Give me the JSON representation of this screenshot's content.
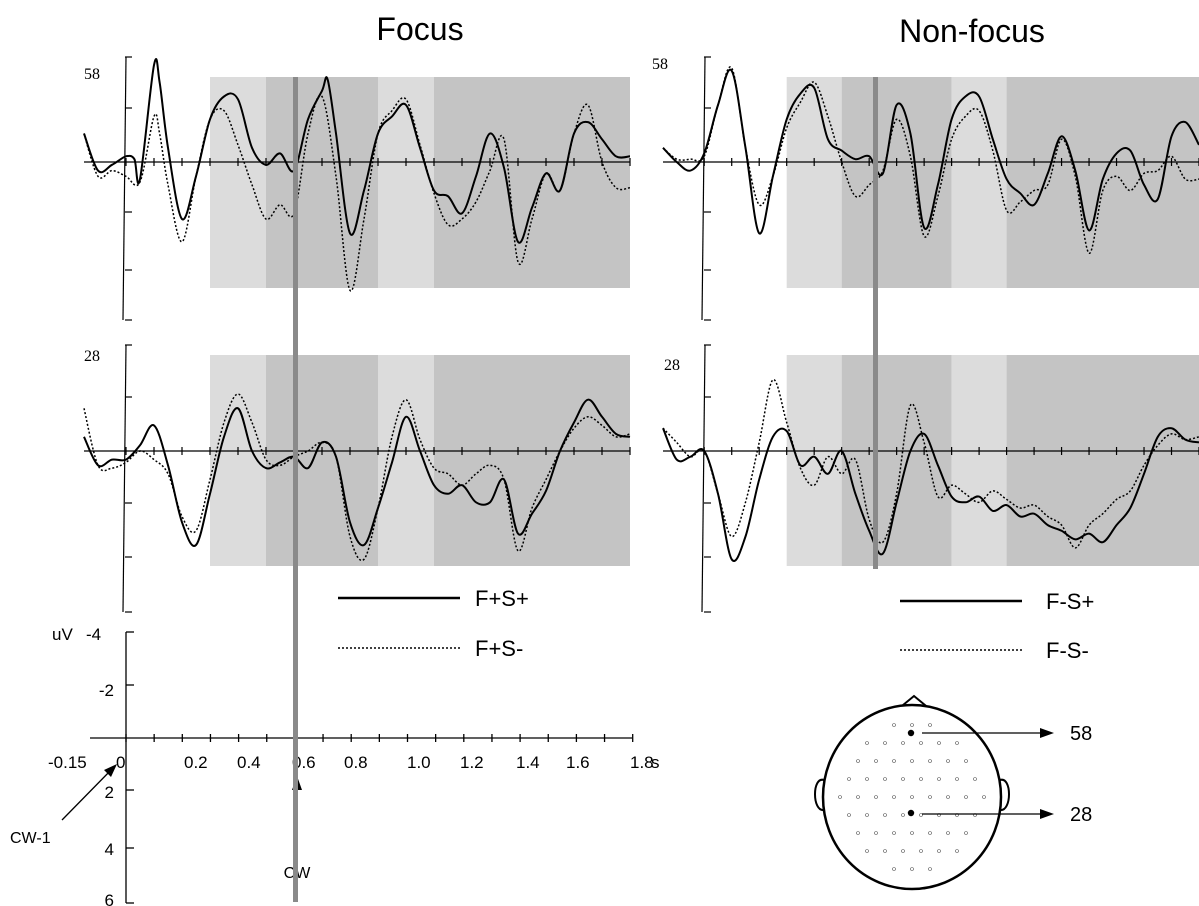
{
  "chart_data": [
    {
      "type": "line",
      "panel": "Focus - electrode 58",
      "title": "Focus",
      "scale_label": "58",
      "x_unit": "s",
      "y_unit": "uV",
      "negative_up": true,
      "xlim": [
        -0.15,
        1.8
      ],
      "ylim": [
        -4,
        6
      ],
      "shaded_windows": [
        [
          0.3,
          0.5,
          "light"
        ],
        [
          0.5,
          0.9,
          "dark"
        ],
        [
          0.9,
          1.1,
          "light"
        ],
        [
          1.1,
          1.8,
          "dark"
        ]
      ],
      "marker_x": 0.6,
      "series": [
        {
          "name": "F+S+",
          "style": "solid",
          "x": [
            -0.15,
            -0.1,
            -0.05,
            0,
            0.03,
            0.05,
            0.1,
            0.12,
            0.15,
            0.2,
            0.25,
            0.3,
            0.35,
            0.4,
            0.45,
            0.5,
            0.55,
            0.6,
            0.65,
            0.7,
            0.72,
            0.75,
            0.8,
            0.85,
            0.9,
            0.95,
            1.0,
            1.05,
            1.1,
            1.15,
            1.2,
            1.25,
            1.3,
            1.35,
            1.4,
            1.45,
            1.5,
            1.55,
            1.6,
            1.65,
            1.7,
            1.75,
            1.8
          ],
          "y": [
            -1.0,
            0.3,
            0.1,
            -0.2,
            -0.1,
            0.6,
            -3.4,
            -2.8,
            -0.5,
            2.0,
            0.5,
            -1.5,
            -2.3,
            -2.2,
            -0.5,
            0.1,
            -0.3,
            0.3,
            -1.5,
            -2.5,
            -2.9,
            -1.0,
            2.5,
            1.0,
            -1.0,
            -1.6,
            -2.0,
            -0.5,
            1.0,
            1.2,
            1.8,
            0.5,
            -1.0,
            0.2,
            2.8,
            1.6,
            0.4,
            1.0,
            -1.0,
            -1.4,
            -0.8,
            -0.2,
            -0.2
          ]
        },
        {
          "name": "F+S-",
          "style": "dotted",
          "x": [
            -0.15,
            -0.1,
            -0.05,
            0,
            0.05,
            0.1,
            0.12,
            0.15,
            0.2,
            0.25,
            0.3,
            0.35,
            0.4,
            0.45,
            0.5,
            0.55,
            0.6,
            0.65,
            0.7,
            0.75,
            0.8,
            0.85,
            0.9,
            0.95,
            1.0,
            1.05,
            1.1,
            1.15,
            1.2,
            1.25,
            1.3,
            1.35,
            1.4,
            1.45,
            1.5,
            1.55,
            1.6,
            1.65,
            1.7,
            1.75,
            1.8
          ],
          "y": [
            -1.0,
            0.5,
            0.3,
            0.5,
            0.7,
            -1.6,
            -1.0,
            0.8,
            2.8,
            0.5,
            -1.5,
            -1.8,
            -0.6,
            0.8,
            2.0,
            1.5,
            1.8,
            -1.0,
            -2.3,
            0.5,
            4.5,
            2.0,
            -1.0,
            -1.8,
            -2.2,
            -0.6,
            1.1,
            2.2,
            2.0,
            1.4,
            0.3,
            -0.8,
            3.5,
            2.0,
            0.4,
            1.0,
            -1.0,
            -2.0,
            0.0,
            0.9,
            0.9
          ]
        }
      ]
    },
    {
      "type": "line",
      "panel": "Non-focus - electrode 58",
      "title": "Non-focus",
      "scale_label": "58",
      "x_unit": "s",
      "negative_up": true,
      "xlim": [
        -0.15,
        1.8
      ],
      "ylim": [
        -4,
        6
      ],
      "shaded_windows": [
        [
          0.3,
          0.5,
          "light"
        ],
        [
          0.5,
          0.9,
          "dark"
        ],
        [
          0.9,
          1.1,
          "light"
        ],
        [
          1.1,
          1.8,
          "dark"
        ]
      ],
      "marker_x": 0.6,
      "series": [
        {
          "name": "F-S+",
          "style": "solid",
          "x": [
            -0.15,
            -0.1,
            -0.05,
            0,
            0.05,
            0.1,
            0.15,
            0.2,
            0.25,
            0.3,
            0.35,
            0.4,
            0.45,
            0.5,
            0.55,
            0.6,
            0.65,
            0.7,
            0.75,
            0.8,
            0.85,
            0.9,
            0.95,
            1.0,
            1.05,
            1.1,
            1.15,
            1.2,
            1.25,
            1.3,
            1.35,
            1.4,
            1.45,
            1.5,
            1.55,
            1.6,
            1.65,
            1.7,
            1.75,
            1.8
          ],
          "y": [
            -0.5,
            0.0,
            0.3,
            -0.3,
            -2.0,
            -3.2,
            -0.5,
            2.5,
            0.5,
            -1.5,
            -2.4,
            -2.6,
            -0.8,
            -0.4,
            -0.1,
            -0.2,
            0.4,
            -2.0,
            -1.0,
            2.3,
            0.8,
            -1.5,
            -2.3,
            -2.3,
            -0.8,
            0.6,
            1.1,
            1.5,
            0.4,
            -0.9,
            0.3,
            2.4,
            0.6,
            -0.3,
            -0.4,
            0.8,
            1.3,
            -0.9,
            -1.4,
            -0.6
          ]
        },
        {
          "name": "F-S-",
          "style": "dotted",
          "x": [
            -0.15,
            -0.1,
            -0.05,
            0,
            0.05,
            0.1,
            0.15,
            0.2,
            0.25,
            0.3,
            0.35,
            0.4,
            0.45,
            0.5,
            0.55,
            0.6,
            0.65,
            0.7,
            0.75,
            0.8,
            0.85,
            0.9,
            0.95,
            1.0,
            1.05,
            1.1,
            1.15,
            1.2,
            1.25,
            1.3,
            1.35,
            1.4,
            1.45,
            1.5,
            1.55,
            1.6,
            1.65,
            1.7,
            1.75,
            1.8
          ],
          "y": [
            -0.5,
            -0.1,
            -0.1,
            -0.2,
            -2.0,
            -3.3,
            -0.5,
            1.5,
            0.5,
            -1.2,
            -2.1,
            -2.8,
            -1.6,
            0.0,
            1.2,
            0.8,
            0.3,
            -1.5,
            -0.2,
            2.6,
            1.2,
            -0.8,
            -1.6,
            -1.8,
            -0.4,
            1.7,
            1.4,
            1.0,
            0.8,
            -0.8,
            0.5,
            3.2,
            1.0,
            0.5,
            1.0,
            0.4,
            0.3,
            -0.2,
            0.6,
            0.6
          ]
        }
      ]
    },
    {
      "type": "line",
      "panel": "Focus - electrode 28",
      "scale_label": "28",
      "x_unit": "s",
      "negative_up": true,
      "xlim": [
        -0.15,
        1.8
      ],
      "ylim": [
        -4,
        6
      ],
      "shaded_windows": [
        [
          0.3,
          0.5,
          "light"
        ],
        [
          0.5,
          0.9,
          "dark"
        ],
        [
          0.9,
          1.1,
          "light"
        ],
        [
          1.1,
          1.8,
          "dark"
        ]
      ],
      "marker_x": 0.6,
      "series": [
        {
          "name": "F+S+",
          "style": "solid",
          "x": [
            -0.15,
            -0.1,
            -0.05,
            0,
            0.05,
            0.1,
            0.15,
            0.2,
            0.25,
            0.3,
            0.35,
            0.4,
            0.45,
            0.5,
            0.55,
            0.6,
            0.65,
            0.7,
            0.75,
            0.8,
            0.85,
            0.9,
            0.95,
            1.0,
            1.05,
            1.1,
            1.15,
            1.2,
            1.25,
            1.3,
            1.35,
            1.4,
            1.45,
            1.5,
            1.55,
            1.6,
            1.65,
            1.7,
            1.75,
            1.8
          ],
          "y": [
            -0.5,
            0.5,
            0.3,
            0.3,
            -0.2,
            -0.9,
            0.5,
            2.5,
            3.3,
            1.5,
            -0.5,
            -1.5,
            0.0,
            0.6,
            0.4,
            0.2,
            0.6,
            -0.3,
            0.2,
            2.5,
            3.3,
            2.0,
            0.4,
            -1.2,
            0.0,
            1.2,
            1.5,
            1.2,
            1.8,
            1.8,
            1.0,
            2.9,
            2.2,
            1.4,
            0.0,
            -1.0,
            -1.8,
            -1.2,
            -0.6,
            -0.5
          ]
        },
        {
          "name": "F+S-",
          "style": "dotted",
          "x": [
            -0.15,
            -0.1,
            -0.05,
            0,
            0.05,
            0.1,
            0.15,
            0.2,
            0.25,
            0.3,
            0.35,
            0.4,
            0.45,
            0.5,
            0.55,
            0.6,
            0.65,
            0.7,
            0.75,
            0.8,
            0.85,
            0.9,
            0.95,
            1.0,
            1.05,
            1.1,
            1.15,
            1.2,
            1.25,
            1.3,
            1.35,
            1.4,
            1.45,
            1.5,
            1.55,
            1.6,
            1.65,
            1.7,
            1.75,
            1.8
          ],
          "y": [
            -1.5,
            0.5,
            0.6,
            0.4,
            0.0,
            0.3,
            0.8,
            2.3,
            2.8,
            1.0,
            -1.0,
            -2.0,
            -1.0,
            0.3,
            0.5,
            0.2,
            0.0,
            -0.3,
            0.2,
            3.0,
            3.8,
            2.0,
            -0.5,
            -1.8,
            -0.4,
            0.6,
            0.8,
            1.2,
            0.8,
            0.5,
            1.0,
            3.5,
            2.0,
            1.0,
            0.0,
            -0.8,
            -1.2,
            -0.9,
            -0.5,
            -0.6
          ]
        }
      ]
    },
    {
      "type": "line",
      "panel": "Non-focus - electrode 28",
      "scale_label": "28",
      "x_unit": "s",
      "negative_up": true,
      "xlim": [
        -0.15,
        1.8
      ],
      "ylim": [
        -4,
        6
      ],
      "shaded_windows": [
        [
          0.3,
          0.5,
          "light"
        ],
        [
          0.5,
          0.9,
          "dark"
        ],
        [
          0.9,
          1.1,
          "light"
        ],
        [
          1.1,
          1.8,
          "dark"
        ]
      ],
      "marker_x": 0.6,
      "series": [
        {
          "name": "F-S+",
          "style": "solid",
          "x": [
            -0.15,
            -0.1,
            -0.05,
            0,
            0.05,
            0.1,
            0.15,
            0.2,
            0.25,
            0.3,
            0.35,
            0.4,
            0.45,
            0.5,
            0.55,
            0.6,
            0.65,
            0.7,
            0.75,
            0.8,
            0.85,
            0.9,
            0.95,
            1.0,
            1.05,
            1.1,
            1.15,
            1.2,
            1.25,
            1.3,
            1.35,
            1.4,
            1.45,
            1.5,
            1.55,
            1.6,
            1.65,
            1.7,
            1.75,
            1.8
          ],
          "y": [
            -0.8,
            0.3,
            0.2,
            0.0,
            1.5,
            3.8,
            3.0,
            1.0,
            -0.5,
            -0.7,
            0.5,
            0.2,
            0.8,
            0.0,
            1.5,
            2.8,
            3.6,
            1.8,
            0.0,
            -0.6,
            0.5,
            1.6,
            1.8,
            1.6,
            2.1,
            1.9,
            2.3,
            2.2,
            2.6,
            2.8,
            3.1,
            2.9,
            3.2,
            2.6,
            2.0,
            0.8,
            -0.5,
            -0.8,
            -0.4,
            -0.3
          ]
        },
        {
          "name": "F-S-",
          "style": "dotted",
          "x": [
            -0.15,
            -0.1,
            -0.05,
            0,
            0.05,
            0.1,
            0.15,
            0.2,
            0.25,
            0.3,
            0.35,
            0.4,
            0.45,
            0.5,
            0.55,
            0.6,
            0.65,
            0.7,
            0.75,
            0.8,
            0.85,
            0.9,
            0.95,
            1.0,
            1.05,
            1.1,
            1.15,
            1.2,
            1.25,
            1.3,
            1.35,
            1.4,
            1.45,
            1.5,
            1.55,
            1.6,
            1.65,
            1.7,
            1.75,
            1.8
          ],
          "y": [
            -0.8,
            -0.3,
            0.2,
            0.0,
            1.5,
            3.0,
            1.8,
            -0.3,
            -2.5,
            -1.0,
            0.6,
            1.2,
            0.2,
            0.8,
            0.3,
            2.4,
            3.2,
            1.5,
            -1.6,
            -0.3,
            1.6,
            1.2,
            1.5,
            1.8,
            1.4,
            1.7,
            2.0,
            1.9,
            2.3,
            2.6,
            3.4,
            2.6,
            2.2,
            1.7,
            1.4,
            0.5,
            -0.2,
            -0.6,
            -0.4,
            -0.5
          ]
        }
      ]
    }
  ],
  "axis": {
    "y_label": "uV",
    "y_ticks": [
      "-4",
      "-2",
      "2",
      "4",
      "6"
    ],
    "x_ticks": [
      "-0.15",
      "0",
      "0.2",
      "0.4",
      "0.6",
      "0.8",
      "1.0",
      "1.2",
      "1.4",
      "1.6",
      "1.8"
    ],
    "x_unit": "s"
  },
  "annotations": {
    "cw_minus_1": "CW-1",
    "cw": "CW"
  },
  "legends": {
    "focus": [
      {
        "label": "F+S+",
        "style": "solid"
      },
      {
        "label": "F+S-",
        "style": "dotted"
      }
    ],
    "nonfocus": [
      {
        "label": "F-S+",
        "style": "solid"
      },
      {
        "label": "F-S-",
        "style": "dotted"
      }
    ]
  },
  "head": {
    "electrodes": [
      "58",
      "28"
    ]
  },
  "colors": {
    "shade_light": "#dcdcdc",
    "shade_dark": "#c4c4c4",
    "marker": "#8a8a8a",
    "trace": "#000000"
  }
}
